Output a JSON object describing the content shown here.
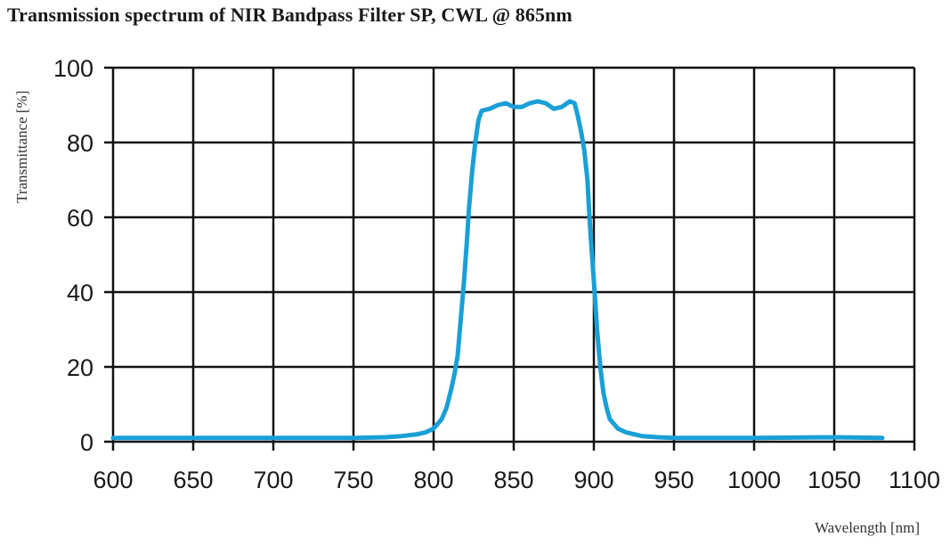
{
  "title": "Transmission spectrum of  NIR Bandpass Filter SP, CWL @ 865nm",
  "chart_data": {
    "type": "line",
    "title": "Transmission spectrum of NIR Bandpass Filter SP, CWL @ 865nm",
    "xlabel": "Wavelength [nm]",
    "ylabel": "Transmittance [%]",
    "xlim": [
      600,
      1100
    ],
    "ylim": [
      0,
      100
    ],
    "xticks": [
      600,
      650,
      700,
      750,
      800,
      850,
      900,
      950,
      1000,
      1050,
      1100
    ],
    "yticks": [
      0,
      20,
      40,
      60,
      80,
      100
    ],
    "grid": true,
    "legend": null,
    "line_color": "#1a9fd6",
    "series": [
      {
        "name": "Transmittance",
        "x": [
          600,
          650,
          700,
          750,
          770,
          780,
          790,
          795,
          800,
          805,
          808,
          811,
          813,
          815,
          817,
          819,
          821,
          822,
          824,
          826,
          828,
          830,
          835,
          840,
          845,
          850,
          855,
          860,
          865,
          870,
          875,
          880,
          885,
          888,
          890,
          892,
          894,
          896,
          897,
          898,
          900,
          902,
          904,
          906,
          908,
          910,
          915,
          920,
          925,
          930,
          940,
          950,
          1000,
          1050,
          1080
        ],
        "y": [
          1,
          1,
          1,
          1,
          1.2,
          1.5,
          2,
          2.5,
          3.5,
          6,
          9,
          14,
          18,
          23,
          33,
          43,
          55,
          62,
          72,
          80,
          86,
          88.5,
          89,
          90,
          90.5,
          89.5,
          89.5,
          90.5,
          91,
          90.5,
          89,
          89.5,
          91,
          90.5,
          87,
          83,
          78,
          70,
          62,
          55,
          43,
          30,
          20,
          13,
          9,
          6,
          3.5,
          2.5,
          2,
          1.5,
          1.2,
          1,
          1,
          1.2,
          1
        ]
      }
    ]
  },
  "axes": {
    "x_tick_labels": [
      "600",
      "650",
      "700",
      "750",
      "800",
      "850",
      "900",
      "950",
      "1000",
      "1050",
      "1100"
    ],
    "y_tick_labels": [
      "0",
      "20",
      "40",
      "60",
      "80",
      "100"
    ],
    "xlabel": "Wavelength [nm]",
    "ylabel": "Transmittance [%]"
  }
}
